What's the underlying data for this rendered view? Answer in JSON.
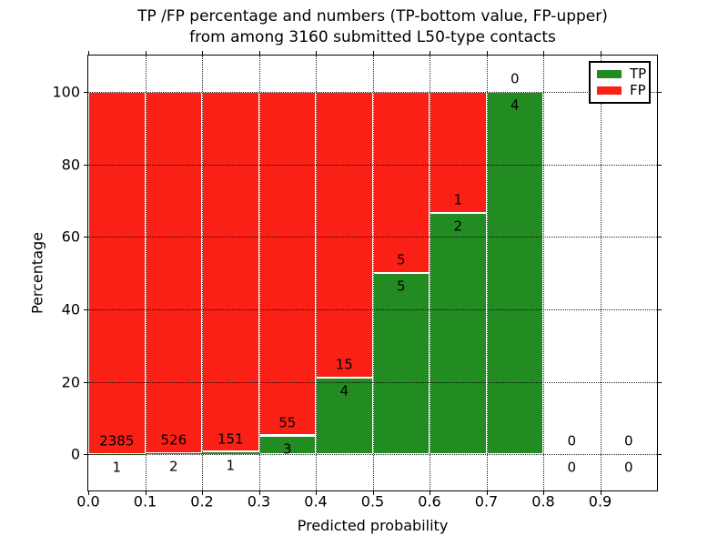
{
  "window": {
    "background": "#ffffff"
  },
  "chart_data": {
    "type": "bar",
    "variant": "stacked-100-percent",
    "title_lines": [
      "TP /FP percentage and numbers (TP-bottom value, FP-upper)",
      "from among 3160 submitted L50-type contacts"
    ],
    "xlabel": "Predicted probability",
    "ylabel": "Percentage",
    "total_submitted": 3160,
    "categories": [
      "0.0-0.1",
      "0.1-0.2",
      "0.2-0.3",
      "0.3-0.4",
      "0.4-0.5",
      "0.5-0.6",
      "0.6-0.7",
      "0.7-0.8",
      "0.8-0.9",
      "0.9-1.0"
    ],
    "series": [
      {
        "name": "TP",
        "color": "#228b22",
        "counts": [
          1,
          2,
          1,
          3,
          4,
          5,
          2,
          4,
          0,
          0
        ]
      },
      {
        "name": "FP",
        "color": "#fb2015",
        "counts": [
          2385,
          526,
          151,
          55,
          15,
          5,
          1,
          0,
          0,
          0
        ]
      }
    ],
    "tp_percent_of_bin": [
      0.04,
      0.38,
      0.66,
      5.17,
      21.05,
      50.0,
      66.67,
      100.0,
      null,
      null
    ],
    "x_ticks": [
      "0.0",
      "0.1",
      "0.2",
      "0.3",
      "0.4",
      "0.5",
      "0.6",
      "0.7",
      "0.8",
      "0.9"
    ],
    "y_ticks": [
      0,
      20,
      40,
      60,
      80,
      100
    ],
    "xlim": [
      0.0,
      1.0
    ],
    "ylim": [
      -10,
      110
    ],
    "grid": "dotted",
    "bar_edge_color": "#ffffff",
    "legend": {
      "position": "upper-right",
      "entries": [
        {
          "label": "TP",
          "color": "#228b22"
        },
        {
          "label": "FP",
          "color": "#fb2015"
        }
      ]
    }
  }
}
